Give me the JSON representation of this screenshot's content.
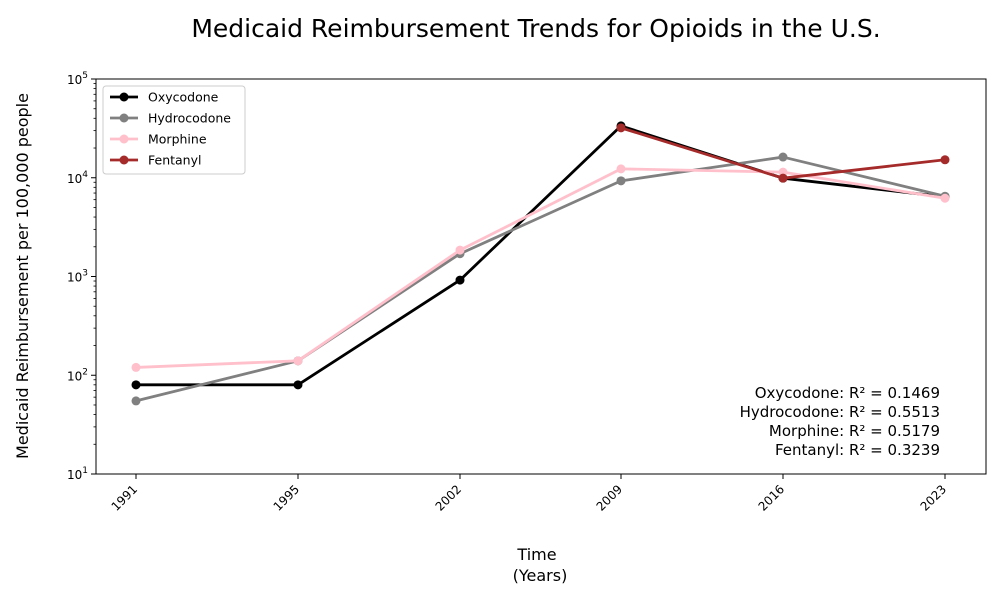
{
  "chart_data": {
    "type": "line",
    "title": "Medicaid Reimbursement Trends for Opioids in the U.S.",
    "xlabel_line1": "Time",
    "xlabel_line2": "(Years)",
    "ylabel": "Medicaid Reimbursement per 100,000 people",
    "y_scale": "log",
    "ylim": [
      10,
      100000
    ],
    "y_ticks": [
      {
        "value": 10,
        "base": "10",
        "exp": "1"
      },
      {
        "value": 100,
        "base": "10",
        "exp": "2"
      },
      {
        "value": 1000,
        "base": "10",
        "exp": "3"
      },
      {
        "value": 10000,
        "base": "10",
        "exp": "4"
      },
      {
        "value": 100000,
        "base": "10",
        "exp": "5"
      }
    ],
    "categories": [
      "1991",
      "1995",
      "2002",
      "2009",
      "2016",
      "2023"
    ],
    "legend_position": "upper left",
    "grid": false,
    "series": [
      {
        "name": "Oxycodone",
        "color": "#000000",
        "values": [
          80,
          80,
          920,
          33500,
          9900,
          6400
        ]
      },
      {
        "name": "Hydrocodone",
        "color": "#808080",
        "values": [
          55,
          140,
          1700,
          9300,
          16200,
          6500
        ]
      },
      {
        "name": "Morphine",
        "color": "#ffc0cb",
        "values": [
          120,
          140,
          1850,
          12300,
          11400,
          6200
        ]
      },
      {
        "name": "Fentanyl",
        "color": "#a52a2a",
        "values": [
          null,
          null,
          null,
          32000,
          9900,
          15200
        ]
      }
    ],
    "annotations": [
      "Oxycodone: R² = 0.1469",
      "Hydrocodone: R² = 0.5513",
      "Morphine: R² = 0.5179",
      "Fentanyl: R² = 0.3239"
    ]
  }
}
